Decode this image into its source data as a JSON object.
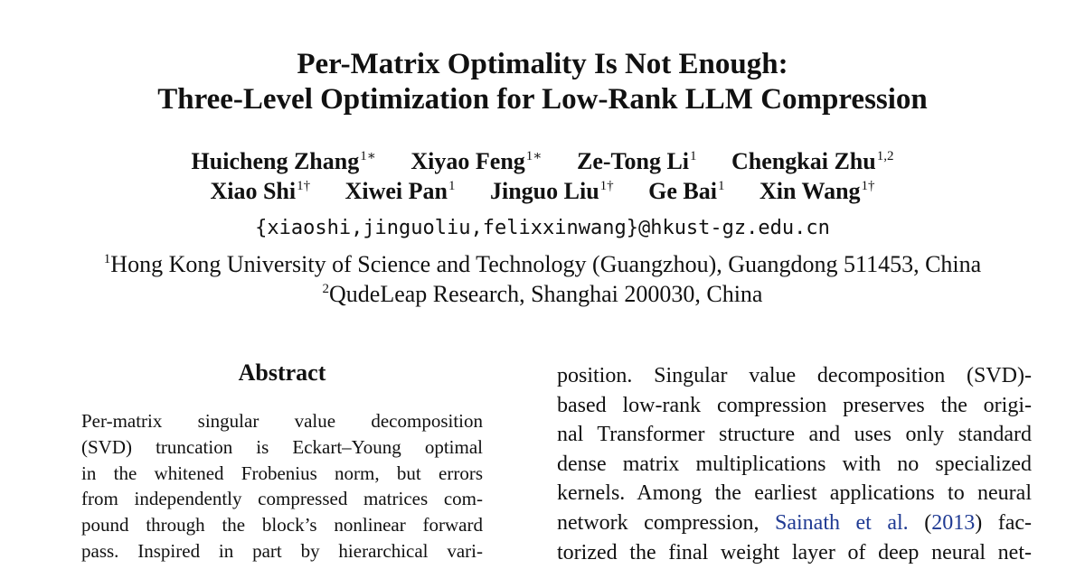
{
  "title": {
    "line1": "Per-Matrix Optimality Is Not Enough:",
    "line2": "Three-Level Optimization for Low-Rank LLM Compression"
  },
  "authors": [
    [
      {
        "name": "Huicheng Zhang",
        "sup": "1∗"
      },
      {
        "name": "Xiyao Feng",
        "sup": "1∗"
      },
      {
        "name": "Ze-Tong Li",
        "sup": "1"
      },
      {
        "name": "Chengkai Zhu",
        "sup": "1,2"
      }
    ],
    [
      {
        "name": "Xiao Shi",
        "sup": "1†"
      },
      {
        "name": "Xiwei Pan",
        "sup": "1"
      },
      {
        "name": "Jinguo Liu",
        "sup": "1†"
      },
      {
        "name": "Ge Bai",
        "sup": "1"
      },
      {
        "name": "Xin Wang",
        "sup": "1†"
      }
    ]
  ],
  "email": "{xiaoshi,jinguoliu,felixxinwang}@hkust-gz.edu.cn",
  "affiliations": [
    {
      "sup": "1",
      "text": "Hong Kong University of Science and Technology (Guangzhou), Guangdong 511453, China"
    },
    {
      "sup": "2",
      "text": "QudeLeap Research, Shanghai 200030, China"
    }
  ],
  "abstract": {
    "heading": "Abstract",
    "lines": [
      "Per-matrix singular value decomposition",
      "(SVD) truncation is Eckart–Young optimal",
      "in the whitened Frobenius norm, but errors",
      "from independently compressed matrices com-",
      "pound through the block’s nonlinear forward",
      "pass.  Inspired in part by hierarchical vari-"
    ]
  },
  "intro": {
    "lines": [
      "position.  Singular value decomposition (SVD)-",
      "based low-rank compression preserves the origi-",
      "nal Transformer structure and uses only standard",
      "dense matrix multiplications with no specialized",
      "kernels. Among the earliest applications to neural"
    ],
    "line6_before": "network compression, ",
    "line6_cite": "Sainath et al.",
    "line6_mid": " (",
    "line6_year": "2013",
    "line6_after": ") fac-",
    "line7": "torized the final weight layer of deep neural net-"
  }
}
